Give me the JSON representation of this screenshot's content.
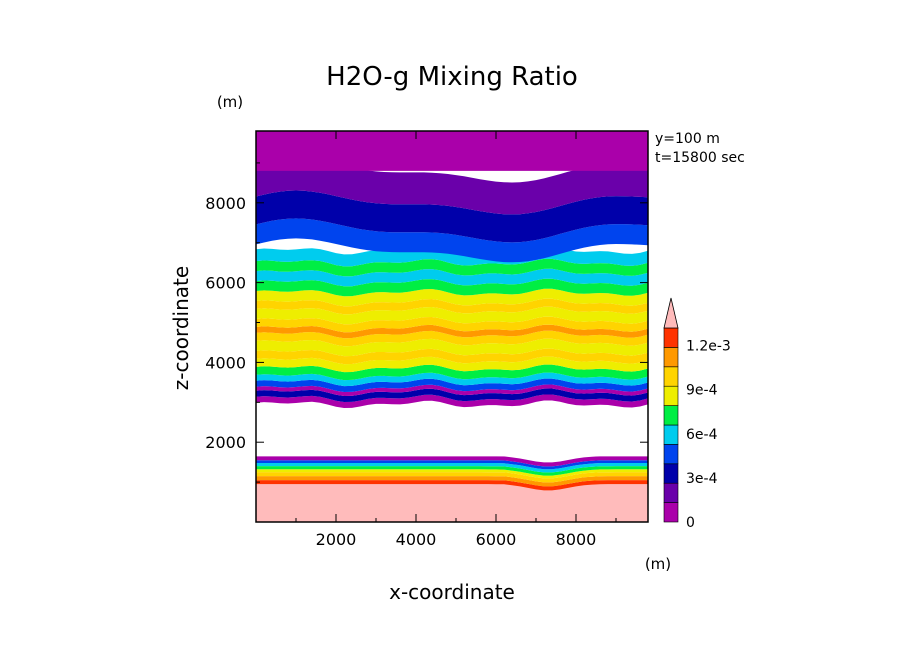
{
  "chart_data": {
    "type": "heatmap",
    "subtype": "filled-contour",
    "title": "H2O-g Mixing Ratio",
    "xlabel": "x-coordinate",
    "ylabel": "z-coordinate",
    "x_unit": "(m)",
    "y_unit": "(m)",
    "annotations": [
      "y=100 m",
      "t=15800 sec"
    ],
    "xlim": [
      0,
      9800
    ],
    "ylim": [
      0,
      9800
    ],
    "x_ticks": [
      2000,
      4000,
      6000,
      8000
    ],
    "y_ticks": [
      2000,
      4000,
      6000,
      8000
    ],
    "colorbar": {
      "levels": [
        0,
        0.00015,
        0.0003,
        0.00045,
        0.0006,
        0.00075,
        0.0009,
        0.00105,
        0.0012
      ],
      "labels": [
        "0",
        "3e-4",
        "6e-4",
        "9e-4",
        "1.2e-3"
      ],
      "label_values": [
        0,
        0.0003,
        0.0006,
        0.0009,
        0.0012
      ],
      "extend": "max",
      "colors": [
        "#aa00aa",
        "#6a00aa",
        "#0000aa",
        "#0044ee",
        "#00ccee",
        "#00ee44",
        "#eeee00",
        "#ffd400",
        "#ff9900",
        "#ff3300",
        "#ffbbbb",
        "#ffffff"
      ]
    },
    "bands": [
      {
        "z_bottom": 0,
        "z_top": 950,
        "x_base": "flat",
        "color_index": 10
      },
      {
        "z_bottom": 950,
        "z_top": 1050,
        "x_base": "dip",
        "color_index": 9
      },
      {
        "z_bottom": 1050,
        "z_top": 1150,
        "x_base": "dip",
        "color_index": 8
      },
      {
        "z_bottom": 1150,
        "z_top": 1250,
        "x_base": "dip",
        "color_index": 7
      },
      {
        "z_bottom": 1250,
        "z_top": 1320,
        "x_base": "dip",
        "color_index": 6
      },
      {
        "z_bottom": 1320,
        "z_top": 1400,
        "x_base": "dip",
        "color_index": 5
      },
      {
        "z_bottom": 1400,
        "z_top": 1480,
        "x_base": "dip",
        "color_index": 4
      },
      {
        "z_bottom": 1480,
        "z_top": 1550,
        "x_base": "dip",
        "color_index": 3
      },
      {
        "z_bottom": 1550,
        "z_top": 1650,
        "x_base": "dip",
        "color_index": 0
      },
      {
        "z_bottom": 1650,
        "z_top": 2950,
        "x_base": "flat",
        "color_index": 11
      },
      {
        "z_bottom": 2950,
        "z_top": 3100,
        "x_base": "wave",
        "color_index": 0
      },
      {
        "z_bottom": 3100,
        "z_top": 3250,
        "x_base": "wave",
        "color_index": 2
      },
      {
        "z_bottom": 3250,
        "z_top": 3350,
        "x_base": "wave",
        "color_index": 0
      },
      {
        "z_bottom": 3350,
        "z_top": 3500,
        "x_base": "wave",
        "color_index": 3
      },
      {
        "z_bottom": 3500,
        "z_top": 3650,
        "x_base": "wave",
        "color_index": 4
      },
      {
        "z_bottom": 3650,
        "z_top": 3850,
        "x_base": "wave",
        "color_index": 5
      },
      {
        "z_bottom": 3850,
        "z_top": 4050,
        "x_base": "wave",
        "color_index": 6
      },
      {
        "z_bottom": 4050,
        "z_top": 4250,
        "x_base": "wave",
        "color_index": 7
      },
      {
        "z_bottom": 4250,
        "z_top": 4500,
        "x_base": "wave",
        "color_index": 6
      },
      {
        "z_bottom": 4500,
        "z_top": 4700,
        "x_base": "wave",
        "color_index": 7
      },
      {
        "z_bottom": 4700,
        "z_top": 4850,
        "x_base": "wave",
        "color_index": 8
      },
      {
        "z_bottom": 4850,
        "z_top": 5050,
        "x_base": "wave",
        "color_index": 7
      },
      {
        "z_bottom": 5050,
        "z_top": 5300,
        "x_base": "wave",
        "color_index": 6
      },
      {
        "z_bottom": 5300,
        "z_top": 5500,
        "x_base": "wave",
        "color_index": 7
      },
      {
        "z_bottom": 5500,
        "z_top": 5750,
        "x_base": "wave",
        "color_index": 6
      },
      {
        "z_bottom": 5750,
        "z_top": 6000,
        "x_base": "wave",
        "color_index": 5
      },
      {
        "z_bottom": 6000,
        "z_top": 6250,
        "x_base": "wave",
        "color_index": 4
      },
      {
        "z_bottom": 6250,
        "z_top": 6500,
        "x_base": "wave",
        "color_index": 5
      },
      {
        "z_bottom": 6500,
        "z_top": 6800,
        "x_base": "wave",
        "color_index": 4
      },
      {
        "z_bottom": 6800,
        "z_top": 7300,
        "x_base": "upper",
        "color_index": 3
      },
      {
        "z_bottom": 7300,
        "z_top": 8000,
        "x_base": "upper",
        "color_index": 2
      },
      {
        "z_bottom": 8000,
        "z_top": 8800,
        "x_base": "upper",
        "color_index": 1
      },
      {
        "z_bottom": 8800,
        "z_top": 9800,
        "x_base": "flat",
        "color_index": 0
      }
    ]
  }
}
